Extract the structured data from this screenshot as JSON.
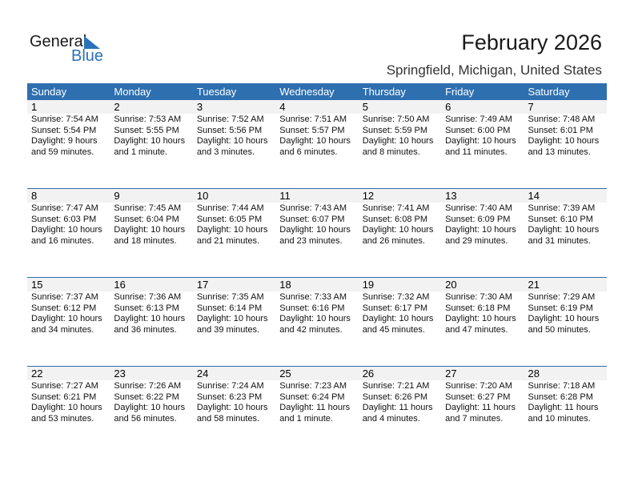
{
  "logo": {
    "text1": "General",
    "text2": "Blue"
  },
  "title": "February 2026",
  "location": "Springfield, Michigan, United States",
  "colors": {
    "header": "#2e6fb0",
    "band": "#f2f2f2",
    "logo_blue": "#2a72b8"
  },
  "weekdays": [
    "Sunday",
    "Monday",
    "Tuesday",
    "Wednesday",
    "Thursday",
    "Friday",
    "Saturday"
  ],
  "weeks": [
    [
      {
        "day": "1",
        "lines": [
          "Sunrise: 7:54 AM",
          "Sunset: 5:54 PM",
          "Daylight: 9 hours",
          "and 59 minutes."
        ]
      },
      {
        "day": "2",
        "lines": [
          "Sunrise: 7:53 AM",
          "Sunset: 5:55 PM",
          "Daylight: 10 hours",
          "and 1 minute."
        ]
      },
      {
        "day": "3",
        "lines": [
          "Sunrise: 7:52 AM",
          "Sunset: 5:56 PM",
          "Daylight: 10 hours",
          "and 3 minutes."
        ]
      },
      {
        "day": "4",
        "lines": [
          "Sunrise: 7:51 AM",
          "Sunset: 5:57 PM",
          "Daylight: 10 hours",
          "and 6 minutes."
        ]
      },
      {
        "day": "5",
        "lines": [
          "Sunrise: 7:50 AM",
          "Sunset: 5:59 PM",
          "Daylight: 10 hours",
          "and 8 minutes."
        ]
      },
      {
        "day": "6",
        "lines": [
          "Sunrise: 7:49 AM",
          "Sunset: 6:00 PM",
          "Daylight: 10 hours",
          "and 11 minutes."
        ]
      },
      {
        "day": "7",
        "lines": [
          "Sunrise: 7:48 AM",
          "Sunset: 6:01 PM",
          "Daylight: 10 hours",
          "and 13 minutes."
        ]
      }
    ],
    [
      {
        "day": "8",
        "lines": [
          "Sunrise: 7:47 AM",
          "Sunset: 6:03 PM",
          "Daylight: 10 hours",
          "and 16 minutes."
        ]
      },
      {
        "day": "9",
        "lines": [
          "Sunrise: 7:45 AM",
          "Sunset: 6:04 PM",
          "Daylight: 10 hours",
          "and 18 minutes."
        ]
      },
      {
        "day": "10",
        "lines": [
          "Sunrise: 7:44 AM",
          "Sunset: 6:05 PM",
          "Daylight: 10 hours",
          "and 21 minutes."
        ]
      },
      {
        "day": "11",
        "lines": [
          "Sunrise: 7:43 AM",
          "Sunset: 6:07 PM",
          "Daylight: 10 hours",
          "and 23 minutes."
        ]
      },
      {
        "day": "12",
        "lines": [
          "Sunrise: 7:41 AM",
          "Sunset: 6:08 PM",
          "Daylight: 10 hours",
          "and 26 minutes."
        ]
      },
      {
        "day": "13",
        "lines": [
          "Sunrise: 7:40 AM",
          "Sunset: 6:09 PM",
          "Daylight: 10 hours",
          "and 29 minutes."
        ]
      },
      {
        "day": "14",
        "lines": [
          "Sunrise: 7:39 AM",
          "Sunset: 6:10 PM",
          "Daylight: 10 hours",
          "and 31 minutes."
        ]
      }
    ],
    [
      {
        "day": "15",
        "lines": [
          "Sunrise: 7:37 AM",
          "Sunset: 6:12 PM",
          "Daylight: 10 hours",
          "and 34 minutes."
        ]
      },
      {
        "day": "16",
        "lines": [
          "Sunrise: 7:36 AM",
          "Sunset: 6:13 PM",
          "Daylight: 10 hours",
          "and 36 minutes."
        ]
      },
      {
        "day": "17",
        "lines": [
          "Sunrise: 7:35 AM",
          "Sunset: 6:14 PM",
          "Daylight: 10 hours",
          "and 39 minutes."
        ]
      },
      {
        "day": "18",
        "lines": [
          "Sunrise: 7:33 AM",
          "Sunset: 6:16 PM",
          "Daylight: 10 hours",
          "and 42 minutes."
        ]
      },
      {
        "day": "19",
        "lines": [
          "Sunrise: 7:32 AM",
          "Sunset: 6:17 PM",
          "Daylight: 10 hours",
          "and 45 minutes."
        ]
      },
      {
        "day": "20",
        "lines": [
          "Sunrise: 7:30 AM",
          "Sunset: 6:18 PM",
          "Daylight: 10 hours",
          "and 47 minutes."
        ]
      },
      {
        "day": "21",
        "lines": [
          "Sunrise: 7:29 AM",
          "Sunset: 6:19 PM",
          "Daylight: 10 hours",
          "and 50 minutes."
        ]
      }
    ],
    [
      {
        "day": "22",
        "lines": [
          "Sunrise: 7:27 AM",
          "Sunset: 6:21 PM",
          "Daylight: 10 hours",
          "and 53 minutes."
        ]
      },
      {
        "day": "23",
        "lines": [
          "Sunrise: 7:26 AM",
          "Sunset: 6:22 PM",
          "Daylight: 10 hours",
          "and 56 minutes."
        ]
      },
      {
        "day": "24",
        "lines": [
          "Sunrise: 7:24 AM",
          "Sunset: 6:23 PM",
          "Daylight: 10 hours",
          "and 58 minutes."
        ]
      },
      {
        "day": "25",
        "lines": [
          "Sunrise: 7:23 AM",
          "Sunset: 6:24 PM",
          "Daylight: 11 hours",
          "and 1 minute."
        ]
      },
      {
        "day": "26",
        "lines": [
          "Sunrise: 7:21 AM",
          "Sunset: 6:26 PM",
          "Daylight: 11 hours",
          "and 4 minutes."
        ]
      },
      {
        "day": "27",
        "lines": [
          "Sunrise: 7:20 AM",
          "Sunset: 6:27 PM",
          "Daylight: 11 hours",
          "and 7 minutes."
        ]
      },
      {
        "day": "28",
        "lines": [
          "Sunrise: 7:18 AM",
          "Sunset: 6:28 PM",
          "Daylight: 11 hours",
          "and 10 minutes."
        ]
      }
    ]
  ]
}
